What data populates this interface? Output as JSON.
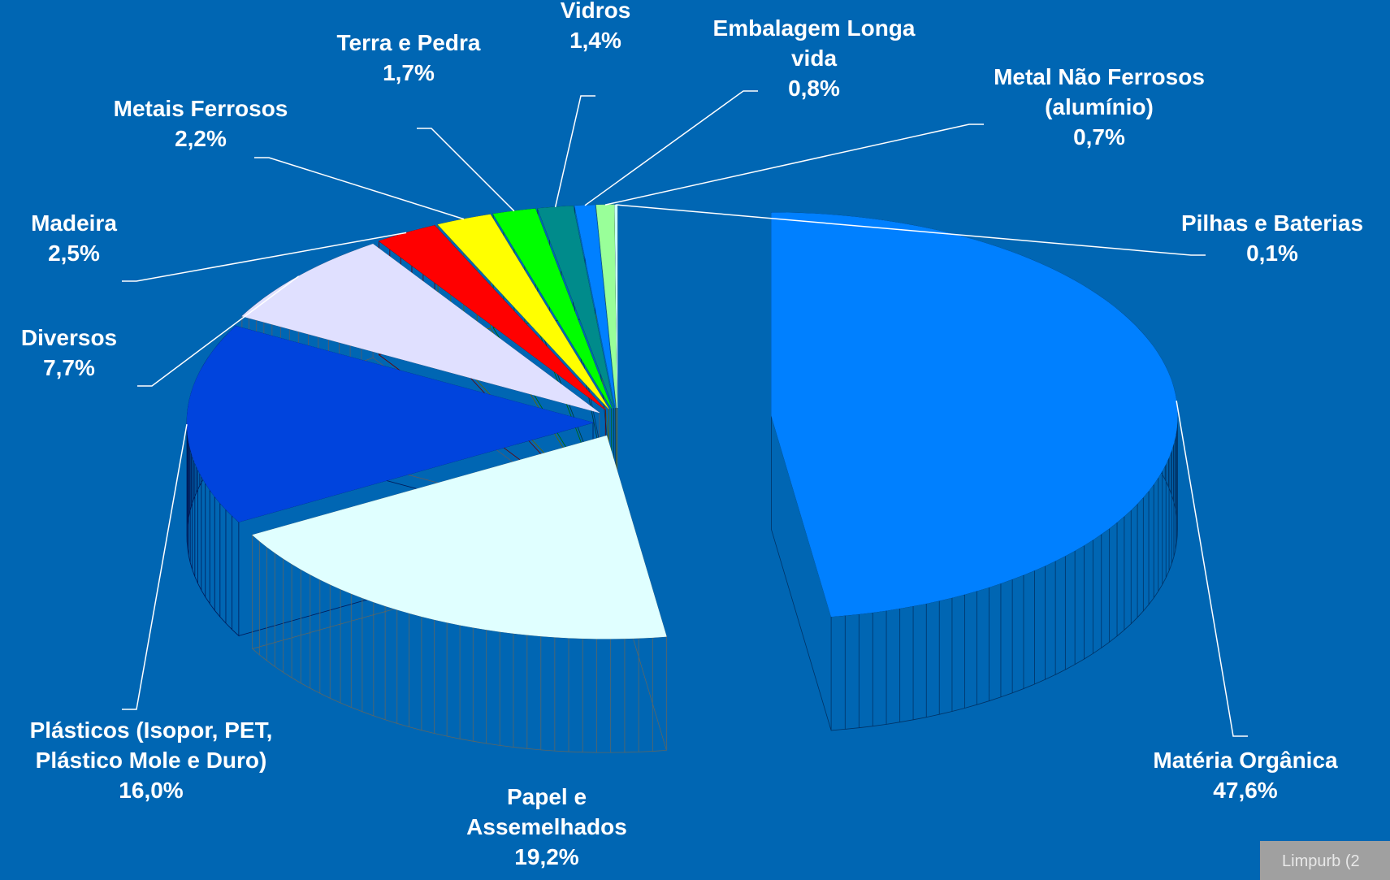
{
  "chart_data": {
    "type": "pie3d",
    "categories": [
      "Matéria Orgânica",
      "Papel e\nAssemelhados",
      "Plásticos (Isopor, PET,\nPlástico Mole e Duro)",
      "Diversos",
      "Madeira",
      "Metais Ferrosos",
      "Terra e Pedra",
      "Vidros",
      "Embalagem Longa\nvida",
      "Metal Não Ferrosos\n(alumínio)",
      "Pilhas e Baterias"
    ],
    "values": [
      47.6,
      19.2,
      16.0,
      7.7,
      2.5,
      2.2,
      1.7,
      1.4,
      0.8,
      0.7,
      0.1
    ],
    "value_labels": [
      "47,6%",
      "19,2%",
      "16,0%",
      "7,7%",
      "2,5%",
      "2,2%",
      "1,7%",
      "1,4%",
      "0,8%",
      "0,7%",
      "0,1%"
    ],
    "colors": [
      "#0080ff",
      "#e0ffff",
      "#0044dd",
      "#e0e0ff",
      "#ff0000",
      "#ffff00",
      "#00ff00",
      "#008b8b",
      "#0080ff",
      "#99ff99",
      "#ccffff"
    ],
    "source": "Limpurb  (2"
  }
}
